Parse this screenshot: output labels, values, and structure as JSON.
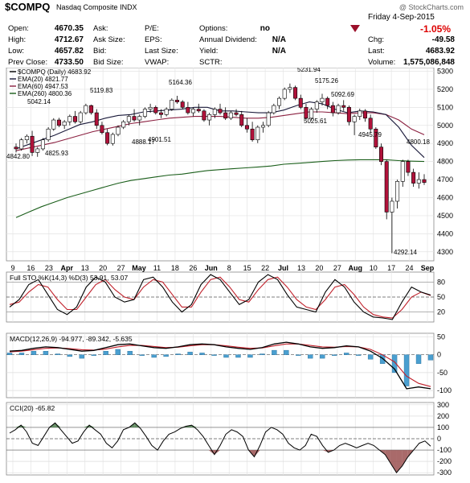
{
  "header": {
    "symbol": "$COMPQ",
    "name": "Nasdaq Composite",
    "exchange": "INDX",
    "watermark": "@ StockCharts.com",
    "date": "Friday  4-Sep-2015",
    "change_pct": "-1.05%",
    "fields_left": [
      {
        "label": "Open:",
        "value": "4670.35"
      },
      {
        "label": "High:",
        "value": "4712.67"
      },
      {
        "label": "Low:",
        "value": "4657.82"
      },
      {
        "label": "Prev Close:",
        "value": "4733.50"
      }
    ],
    "fields_mid": [
      "Ask:",
      "Ask Size:",
      "Bid:",
      "Bid Size:"
    ],
    "fields_mid2": [
      "P/E:",
      "EPS:",
      "Last Size:",
      "VWAP:"
    ],
    "fields_right": [
      {
        "label": "Options:",
        "value": "no"
      },
      {
        "label": "Annual Dividend:",
        "value": "N/A"
      },
      {
        "label": "Yield:",
        "value": "N/A"
      },
      {
        "label": "SCTR:",
        "value": ""
      }
    ],
    "fields_far": [
      {
        "label": "Chg:",
        "value": "-49.58"
      },
      {
        "label": "Last:",
        "value": "4683.92"
      },
      {
        "label": "Volume:",
        "value": "1,575,086,848"
      }
    ]
  },
  "chart_data": {
    "type": "candlestick",
    "price_panel": {
      "legend": [
        "$COMPQ (Daily) 4683.92",
        "EMA(20) 4821.77",
        "EMA(60) 4947.53",
        "EMA(260) 4800.36"
      ],
      "ylim": [
        4250,
        5320
      ],
      "yticks": [
        4300,
        4400,
        4500,
        4600,
        4700,
        4800,
        4900,
        5000,
        5100,
        5200,
        5300
      ],
      "annotations": [
        "4842.80",
        "5042.14",
        "4825.93",
        "5119.83",
        "4888.17",
        "5164.36",
        "4901.51",
        "5231.94",
        "5175.26",
        "5025.61",
        "5092.69",
        "4945.79",
        "4800.18",
        "4292.14"
      ],
      "ema20": [
        4870,
        4895,
        4920,
        4945,
        4975,
        5005,
        5020,
        5040,
        5055,
        5060,
        5075,
        5080,
        5085,
        5090,
        5100,
        5100,
        5080,
        5080,
        5075,
        5070,
        5070,
        5085,
        5110,
        5130,
        5120,
        5090,
        5070,
        5080,
        5075,
        5060,
        4990,
        4890,
        4822
      ],
      "ema60": [
        4860,
        4875,
        4890,
        4905,
        4925,
        4945,
        4965,
        4980,
        4995,
        5010,
        5020,
        5030,
        5040,
        5045,
        5050,
        5050,
        5050,
        5045,
        5040,
        5040,
        5045,
        5055,
        5065,
        5075,
        5075,
        5070,
        5065,
        5070,
        5070,
        5060,
        5030,
        4980,
        4948
      ],
      "ema260": [
        4490,
        4520,
        4550,
        4575,
        4600,
        4620,
        4640,
        4660,
        4680,
        4695,
        4705,
        4715,
        4725,
        4730,
        4740,
        4750,
        4755,
        4760,
        4765,
        4770,
        4775,
        4785,
        4790,
        4795,
        4800,
        4805,
        4808,
        4810,
        4810,
        4810,
        4805,
        4802,
        4800
      ]
    },
    "candles": [
      [
        4880,
        4900,
        4850,
        4870
      ],
      [
        4870,
        4930,
        4860,
        4920
      ],
      [
        4920,
        4950,
        4900,
        4940
      ],
      [
        4940,
        4970,
        4830,
        4850
      ],
      [
        4850,
        4880,
        4826,
        4870
      ],
      [
        4870,
        4930,
        4860,
        4920
      ],
      [
        4920,
        4990,
        4910,
        4980
      ],
      [
        4980,
        5040,
        4970,
        5030
      ],
      [
        5030,
        5042,
        4990,
        5000
      ],
      [
        5000,
        5030,
        4980,
        5020
      ],
      [
        5020,
        5060,
        5000,
        5050
      ],
      [
        5050,
        5080,
        5010,
        5020
      ],
      [
        5020,
        5080,
        5010,
        5070
      ],
      [
        5070,
        5120,
        5060,
        5110
      ],
      [
        5110,
        5115,
        5060,
        5070
      ],
      [
        5070,
        5090,
        4980,
        5000
      ],
      [
        5000,
        5020,
        4950,
        4960
      ],
      [
        4960,
        4980,
        4890,
        4900
      ],
      [
        4900,
        4960,
        4888,
        4950
      ],
      [
        4950,
        5000,
        4940,
        4990
      ],
      [
        4990,
        5030,
        4980,
        5020
      ],
      [
        5020,
        5060,
        5000,
        5050
      ],
      [
        5050,
        5090,
        5020,
        5030
      ],
      [
        5030,
        5060,
        5000,
        5050
      ],
      [
        5050,
        5100,
        5040,
        5090
      ],
      [
        5090,
        5120,
        5070,
        5100
      ],
      [
        5100,
        5110,
        5060,
        5070
      ],
      [
        5070,
        5090,
        5040,
        5060
      ],
      [
        5060,
        5100,
        5050,
        5090
      ],
      [
        5090,
        5150,
        5080,
        5140
      ],
      [
        5140,
        5164,
        5120,
        5130
      ],
      [
        5130,
        5140,
        5090,
        5100
      ],
      [
        5100,
        5130,
        5060,
        5070
      ],
      [
        5070,
        5100,
        5050,
        5090
      ],
      [
        5090,
        5120,
        5070,
        5080
      ],
      [
        5080,
        5090,
        5020,
        5030
      ],
      [
        5030,
        5070,
        5000,
        5060
      ],
      [
        5060,
        5100,
        5040,
        5090
      ],
      [
        5090,
        5120,
        5060,
        5070
      ],
      [
        5070,
        5100,
        5030,
        5040
      ],
      [
        5040,
        5080,
        5030,
        5070
      ],
      [
        5070,
        5090,
        5050,
        5060
      ],
      [
        5060,
        5080,
        4990,
        5000
      ],
      [
        5000,
        5040,
        4960,
        4980
      ],
      [
        4980,
        5020,
        4910,
        4920
      ],
      [
        4920,
        5000,
        4902,
        4990
      ],
      [
        4990,
        5020,
        4960,
        5000
      ],
      [
        5000,
        5080,
        4990,
        5070
      ],
      [
        5070,
        5120,
        5060,
        5110
      ],
      [
        5110,
        5160,
        5090,
        5150
      ],
      [
        5150,
        5210,
        5140,
        5200
      ],
      [
        5200,
        5232,
        5180,
        5210
      ],
      [
        5210,
        5220,
        5140,
        5150
      ],
      [
        5150,
        5170,
        5090,
        5100
      ],
      [
        5100,
        5120,
        5030,
        5040
      ],
      [
        5040,
        5100,
        5026,
        5090
      ],
      [
        5090,
        5140,
        5070,
        5130
      ],
      [
        5130,
        5175,
        5110,
        5150
      ],
      [
        5150,
        5160,
        5090,
        5110
      ],
      [
        5110,
        5130,
        5050,
        5070
      ],
      [
        5070,
        5120,
        5060,
        5110
      ],
      [
        5110,
        5140,
        5080,
        5100
      ],
      [
        5100,
        5110,
        5000,
        5020
      ],
      [
        5020,
        5060,
        4946,
        5050
      ],
      [
        5050,
        5093,
        5030,
        5080
      ],
      [
        5080,
        5090,
        5020,
        5040
      ],
      [
        5040,
        5060,
        4960,
        4980
      ],
      [
        4980,
        4990,
        4870,
        4880
      ],
      [
        4880,
        4900,
        4780,
        4800
      ],
      [
        4800,
        4810,
        4480,
        4520
      ],
      [
        4520,
        4600,
        4292,
        4580
      ],
      [
        4580,
        4700,
        4540,
        4690
      ],
      [
        4690,
        4810,
        4660,
        4800
      ],
      [
        4800,
        4810,
        4720,
        4740
      ],
      [
        4740,
        4760,
        4660,
        4680
      ],
      [
        4680,
        4740,
        4650,
        4700
      ],
      [
        4700,
        4730,
        4670,
        4684
      ]
    ],
    "x_tick_labels": [
      "9",
      "16",
      "23",
      "Apr",
      "13",
      "20",
      "27",
      "May",
      "11",
      "18",
      "26",
      "Jun",
      "8",
      "15",
      "22",
      "Jul",
      "13",
      "20",
      "27",
      "Aug",
      "10",
      "17",
      "24",
      "Sep"
    ],
    "sto": {
      "label": "Full STO %K(14,3) %D(3) 53.91, 53.07",
      "ylim": [
        0,
        100
      ],
      "levels": [
        20,
        50,
        80
      ],
      "k": [
        30,
        45,
        75,
        85,
        55,
        25,
        15,
        30,
        70,
        90,
        80,
        50,
        40,
        45,
        85,
        90,
        70,
        40,
        20,
        35,
        75,
        95,
        85,
        60,
        35,
        45,
        80,
        95,
        85,
        55,
        30,
        25,
        20,
        60,
        85,
        70,
        40,
        20,
        10,
        8,
        5,
        40,
        70,
        60,
        54
      ],
      "d": [
        35,
        40,
        60,
        75,
        70,
        45,
        25,
        25,
        50,
        75,
        85,
        65,
        50,
        45,
        70,
        85,
        80,
        55,
        30,
        30,
        60,
        85,
        90,
        70,
        45,
        40,
        65,
        85,
        90,
        70,
        45,
        30,
        25,
        45,
        70,
        75,
        55,
        30,
        15,
        10,
        8,
        25,
        50,
        60,
        53
      ]
    },
    "macd": {
      "label": "MACD(12,26,9) -94.977, -89.342, -5.635",
      "ylim": [
        -120,
        60
      ],
      "levels": [
        -100,
        -50,
        0,
        50
      ],
      "macd": [
        10,
        12,
        18,
        22,
        20,
        15,
        10,
        12,
        20,
        28,
        30,
        25,
        20,
        18,
        22,
        28,
        30,
        28,
        22,
        18,
        15,
        20,
        30,
        35,
        30,
        22,
        18,
        20,
        25,
        22,
        10,
        -10,
        -40,
        -95,
        -90,
        -95
      ],
      "signal": [
        8,
        10,
        14,
        18,
        19,
        17,
        14,
        13,
        16,
        22,
        26,
        26,
        23,
        20,
        21,
        25,
        28,
        28,
        25,
        21,
        18,
        19,
        25,
        30,
        30,
        26,
        22,
        21,
        23,
        22,
        15,
        0,
        -20,
        -60,
        -80,
        -89
      ],
      "hist": [
        2,
        2,
        4,
        4,
        1,
        -2,
        -4,
        -1,
        4,
        6,
        4,
        -1,
        -3,
        -2,
        1,
        3,
        2,
        0,
        -3,
        -3,
        -3,
        1,
        5,
        5,
        0,
        -4,
        -4,
        -1,
        2,
        0,
        -5,
        -10,
        -20,
        -35,
        -10,
        -6
      ]
    },
    "cci": {
      "label": "CCI(20) -65.82",
      "ylim": [
        -320,
        320
      ],
      "levels": [
        -300,
        -200,
        -100,
        0,
        100,
        200,
        300
      ],
      "values": [
        50,
        80,
        120,
        60,
        -40,
        -60,
        20,
        100,
        140,
        80,
        20,
        -40,
        -20,
        60,
        120,
        80,
        40,
        -40,
        -80,
        -20,
        80,
        100,
        140,
        90,
        20,
        -60,
        -100,
        -20,
        40,
        60,
        90,
        110,
        120,
        80,
        20,
        -60,
        -140,
        -60,
        40,
        80,
        60,
        20,
        -100,
        -160,
        -60,
        60,
        100,
        80,
        40,
        -40,
        -80,
        -100,
        -60,
        40,
        20,
        -60,
        -120,
        -100,
        -60,
        -40,
        -60,
        -80,
        -60,
        -40,
        -60,
        -100,
        -140,
        -220,
        -300,
        -240,
        -160,
        -100,
        -40,
        -20,
        -66
      ]
    }
  }
}
